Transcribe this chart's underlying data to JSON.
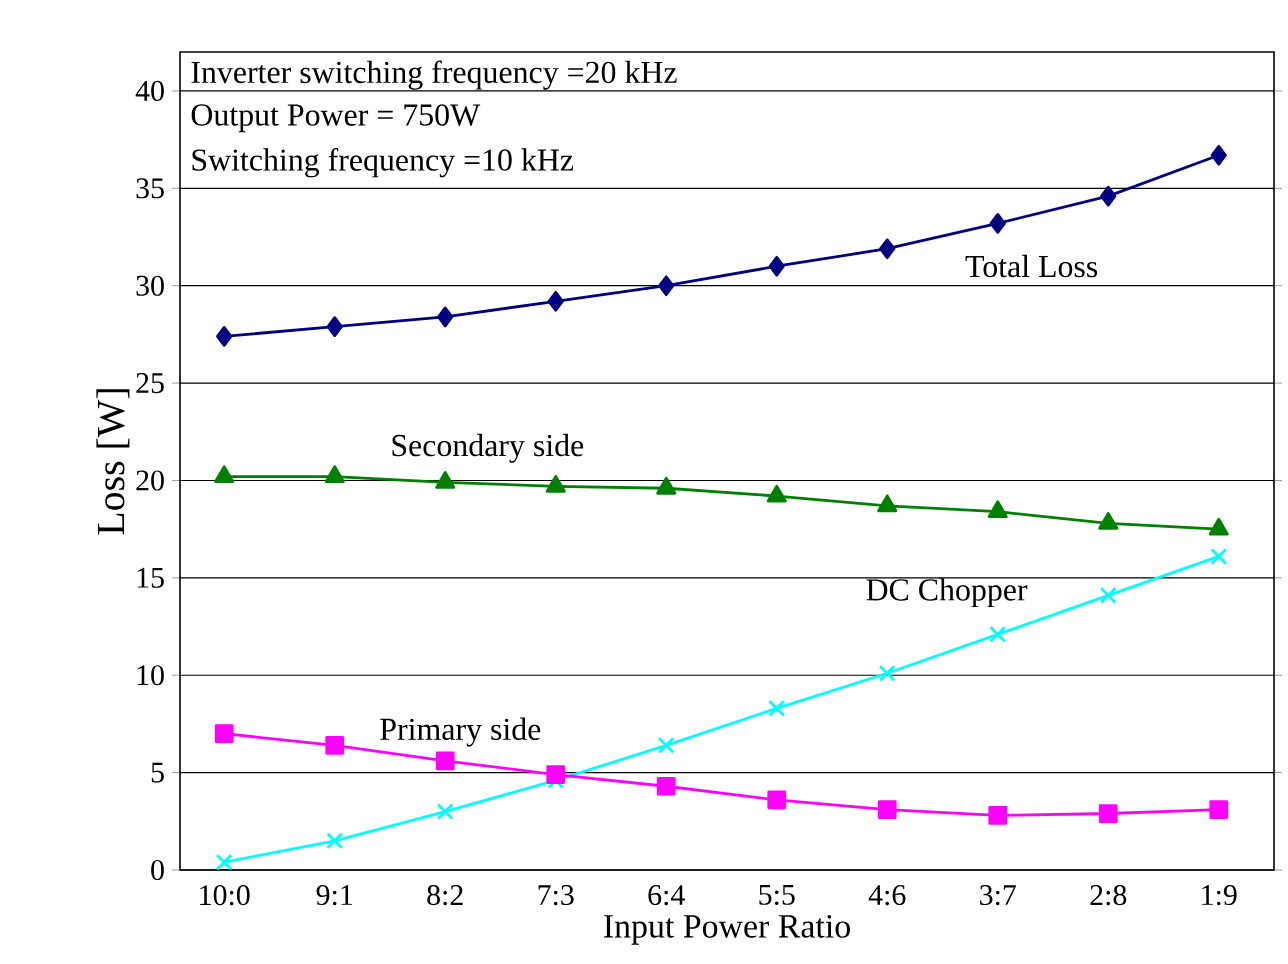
{
  "chart_data": {
    "type": "line",
    "xlabel": "Input Power Ratio",
    "ylabel": "Loss [W]",
    "annotations": [
      "Inverter switching frequency =20 kHz",
      "Output Power = 750W",
      "Switching frequency =10 kHz"
    ],
    "categories": [
      "10:0",
      "9:1",
      "8:2",
      "7:3",
      "6:4",
      "5:5",
      "4:6",
      "3:7",
      "2:8",
      "1:9"
    ],
    "ylim": [
      0,
      42
    ],
    "yticks": [
      0,
      5,
      10,
      15,
      20,
      25,
      30,
      35,
      40
    ],
    "grid": "y",
    "legend": false,
    "series": [
      {
        "name": "Total Loss",
        "color": "#000080",
        "marker": "diamond",
        "values": [
          27.4,
          27.9,
          28.4,
          29.2,
          30.0,
          31.0,
          31.9,
          33.2,
          34.6,
          36.7
        ]
      },
      {
        "name": "Secondary side",
        "color": "#008000",
        "marker": "triangle",
        "values": [
          20.2,
          20.2,
          19.9,
          19.7,
          19.6,
          19.2,
          18.7,
          18.4,
          17.8,
          17.5
        ]
      },
      {
        "name": "DC Chopper",
        "color": "#00ffff",
        "marker": "cross",
        "values": [
          0.4,
          1.5,
          3.0,
          4.6,
          6.4,
          8.3,
          10.1,
          12.1,
          14.1,
          16.1
        ]
      },
      {
        "name": "Primary side",
        "color": "#ff00ff",
        "marker": "square",
        "values": [
          7.0,
          6.4,
          5.6,
          4.9,
          4.3,
          3.6,
          3.1,
          2.8,
          2.9,
          3.1
        ]
      }
    ]
  }
}
